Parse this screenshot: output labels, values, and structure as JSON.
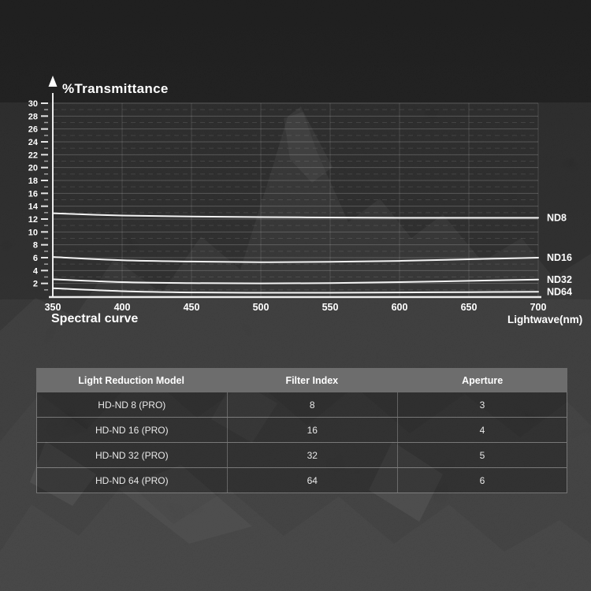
{
  "chart": {
    "title": "%Transmittance",
    "bottom_left_label": "Spectral curve",
    "x_axis_label": "Lightwave(nm)"
  },
  "chart_data": {
    "type": "line",
    "title": "%Transmittance",
    "xlabel": "Lightwave(nm)",
    "ylabel": "%Transmittance",
    "x": [
      350,
      400,
      450,
      500,
      550,
      600,
      650,
      700
    ],
    "x_ticks": [
      350,
      400,
      450,
      500,
      550,
      600,
      650,
      700
    ],
    "xlim": [
      350,
      700
    ],
    "ylim": [
      0,
      30
    ],
    "y_tick_labels": [
      2,
      4,
      6,
      8,
      10,
      12,
      14,
      16,
      18,
      20,
      22,
      24,
      26,
      28,
      30
    ],
    "y_ticks": {
      "min": 2,
      "max": 30,
      "step": 2
    },
    "grid": {
      "horizontal_solid_at_even": true,
      "horizontal_dashed_at_odd": true,
      "vertical_at_x_ticks": true
    },
    "legend_position": "right-of-line-ends",
    "series": [
      {
        "name": "ND8",
        "values": [
          12.9,
          12.55,
          12.4,
          12.3,
          12.25,
          12.2,
          12.2,
          12.2
        ]
      },
      {
        "name": "ND16",
        "values": [
          6.1,
          5.6,
          5.4,
          5.3,
          5.35,
          5.5,
          5.75,
          6.0
        ]
      },
      {
        "name": "ND32",
        "values": [
          2.65,
          2.2,
          2.05,
          2.0,
          2.05,
          2.2,
          2.4,
          2.6
        ]
      },
      {
        "name": "ND64",
        "values": [
          1.25,
          0.8,
          0.6,
          0.55,
          0.55,
          0.6,
          0.65,
          0.7
        ]
      }
    ]
  },
  "table": {
    "headers": [
      "Light Reduction Model",
      "Filter Index",
      "Aperture"
    ],
    "rows": [
      [
        "HD-ND 8 (PRO)",
        "8",
        "3"
      ],
      [
        "HD-ND 16 (PRO)",
        "16",
        "4"
      ],
      [
        "HD-ND 32 (PRO)",
        "32",
        "5"
      ],
      [
        "HD-ND 64 (PRO)",
        "64",
        "6"
      ]
    ]
  },
  "colors": {
    "background": "#1a1a1a",
    "chart_line": "#f3f3f3",
    "axis": "#ececec",
    "grid_solid": "rgba(255,255,255,0.20)",
    "grid_dashed": "rgba(255,255,255,0.10)",
    "grid_vertical": "rgba(255,255,255,0.13)",
    "text": "#ffffff",
    "table_header_bg": "#6d6d6d",
    "table_row_bg": "rgba(10,10,10,0.30)",
    "table_border": "rgba(255,255,255,0.35)"
  }
}
